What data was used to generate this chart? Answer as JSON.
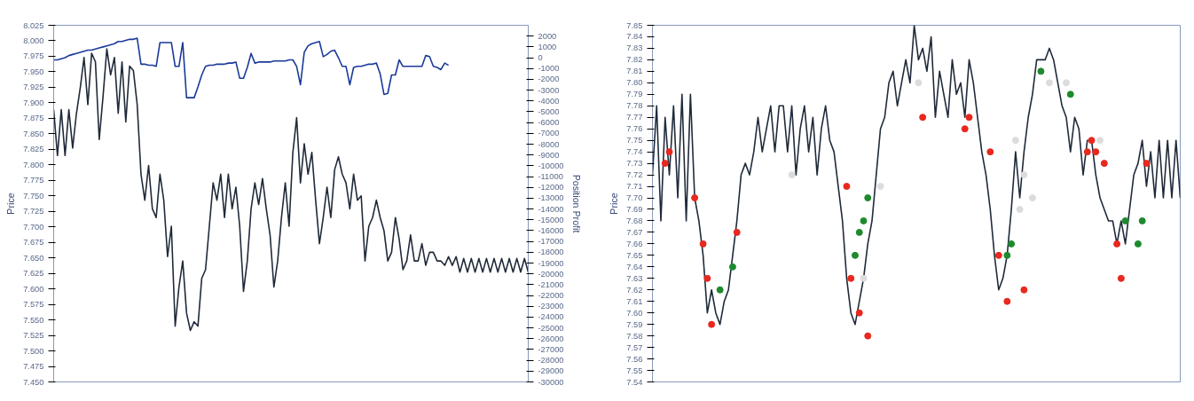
{
  "chart_data": [
    {
      "type": "line",
      "ylabel": "Price",
      "y2label": "Position Profit",
      "grid": false,
      "tick_labels": "y",
      "marker": "none",
      "line_style": "solid",
      "categories": [
        null,
        null,
        null,
        null,
        null,
        null,
        null,
        null,
        null,
        null,
        null,
        null,
        null,
        null,
        null,
        null,
        null,
        null,
        null,
        null,
        null,
        null,
        null,
        null,
        null,
        null,
        null,
        null,
        null,
        null,
        null,
        null,
        null,
        null,
        null,
        null,
        null,
        null,
        null,
        null,
        null,
        null,
        null,
        null,
        null,
        null,
        null,
        null,
        null,
        null,
        null,
        null,
        null,
        null,
        null,
        null,
        null,
        null,
        null,
        null,
        null,
        null,
        null,
        null,
        null,
        null,
        null,
        null,
        null,
        null,
        null,
        null,
        null,
        null,
        null,
        null,
        null,
        null,
        null,
        null,
        null,
        null,
        null,
        null,
        null,
        null,
        null,
        null,
        null,
        null,
        null,
        null,
        null,
        null,
        null,
        null,
        null,
        null,
        null,
        null,
        null,
        null,
        null,
        null,
        null,
        null,
        null,
        null,
        null,
        null,
        null,
        null,
        null,
        null,
        null,
        null,
        null,
        null,
        null,
        null,
        null,
        null,
        null,
        null,
        null,
        null
      ],
      "ylim": [
        7.45,
        8.025
      ],
      "y2lim": [
        -30000,
        3000
      ],
      "yticks": [
        {
          "value": 7.45,
          "label": "7.450"
        },
        7.475,
        {
          "value": 7.5,
          "label": "7.500"
        },
        7.525,
        {
          "value": 7.55,
          "label": "7.550"
        },
        7.575,
        {
          "value": 7.6,
          "label": "7.600"
        },
        7.625,
        {
          "value": 7.65,
          "label": "7.650"
        },
        7.675,
        {
          "value": 7.7,
          "label": "7.700"
        },
        7.725,
        {
          "value": 7.75,
          "label": "7.750"
        },
        7.775,
        {
          "value": 7.8,
          "label": "7.800"
        },
        7.825,
        {
          "value": 7.85,
          "label": "7.850"
        },
        7.875,
        {
          "value": 7.9,
          "label": "7.900"
        },
        7.925,
        {
          "value": 7.95,
          "label": "7.950"
        },
        7.975,
        {
          "value": 8.0,
          "label": "8.000"
        },
        8.025
      ],
      "y2ticks": [
        2000,
        1000,
        0,
        -1000,
        -2000,
        -3000,
        -4000,
        -5000,
        -6000,
        -7000,
        -8000,
        -9000,
        -10000,
        -11000,
        -12000,
        -13000,
        -14000,
        -15000,
        -16000,
        -17000,
        -18000,
        -19000,
        -20000,
        -21000,
        -22000,
        -23000,
        -24000,
        -25000,
        -26000,
        -27000,
        -28000,
        -29000,
        -30000
      ],
      "series": [
        {
          "color": "#1f2a3a",
          "values": [
            7.889,
            7.815,
            7.889,
            7.815,
            7.889,
            7.827,
            7.883,
            7.924,
            7.973,
            7.897,
            7.98,
            7.966,
            7.841,
            7.91,
            7.987,
            7.945,
            7.973,
            7.883,
            7.966,
            7.869,
            7.959,
            7.952,
            7.897,
            7.785,
            7.743,
            7.799,
            7.729,
            7.715,
            7.785,
            7.743,
            7.652,
            7.701,
            7.54,
            7.603,
            7.645,
            7.561,
            7.533,
            7.547,
            7.54,
            7.617,
            7.631,
            7.701,
            7.771,
            7.743,
            7.785,
            7.715,
            7.785,
            7.729,
            7.764,
            7.701,
            7.596,
            7.645,
            7.729,
            7.771,
            7.736,
            7.778,
            7.729,
            7.687,
            7.603,
            7.645,
            7.715,
            7.771,
            7.701,
            7.82,
            7.876,
            7.771,
            7.834,
            7.785,
            7.82,
            7.743,
            7.673,
            7.715,
            7.764,
            7.715,
            7.792,
            7.813,
            7.785,
            7.771,
            7.729,
            7.785,
            7.743,
            7.75,
            7.645,
            7.701,
            7.715,
            7.743,
            7.715,
            7.694,
            7.645,
            7.659,
            7.715,
            7.68,
            7.631,
            7.645,
            7.687,
            7.645,
            7.645,
            7.673,
            7.638,
            7.659,
            7.659,
            7.645,
            7.645,
            7.638,
            7.652,
            7.638,
            7.652,
            7.627,
            7.649,
            7.627,
            7.649,
            7.627,
            7.649,
            7.627,
            7.649,
            7.627,
            7.649,
            7.627,
            7.649,
            7.627,
            7.649,
            7.627,
            7.649,
            7.627,
            7.649,
            7.627
          ]
        },
        {
          "axis": "y2",
          "color": "#1a3a9a",
          "values": [
            -200,
            -200,
            -100,
            0,
            200,
            300,
            400,
            500,
            600,
            700,
            700,
            800,
            900,
            1000,
            1100,
            1200,
            1300,
            1500,
            1500,
            1600,
            1700,
            1700,
            1800,
            -600,
            -600,
            -700,
            -700,
            -800,
            1400,
            1400,
            1400,
            1400,
            -800,
            -800,
            1400,
            -3700,
            -3700,
            -3700,
            -2700,
            -1600,
            -800,
            -700,
            -700,
            -600,
            -600,
            -600,
            -500,
            -500,
            -400,
            -1900,
            -1900,
            -900,
            400,
            -500,
            -400,
            -400,
            -400,
            -400,
            -300,
            -300,
            -300,
            -300,
            -200,
            -200,
            -800,
            -2500,
            500,
            1100,
            1300,
            1400,
            1500,
            100,
            300,
            600,
            700,
            0,
            -800,
            -800,
            -2500,
            -900,
            -800,
            -800,
            -700,
            -600,
            -600,
            -500,
            -1500,
            -3400,
            -3300,
            -1600,
            -1600,
            -200,
            -800,
            -800,
            -800,
            -800,
            -800,
            -800,
            200,
            100,
            -800,
            -900,
            -1100,
            -500,
            -700,
            null,
            null,
            null,
            null,
            null,
            null,
            null,
            null,
            null,
            null,
            null,
            null,
            null,
            null,
            null,
            null,
            null,
            null,
            null,
            null,
            null
          ]
        }
      ]
    },
    {
      "type": "line",
      "ylabel": "Price",
      "grid": false,
      "tick_labels": "y",
      "marker": "none",
      "line_style": "solid",
      "categories": [
        null,
        null,
        null,
        null,
        null,
        null,
        null,
        null,
        null,
        null,
        null,
        null,
        null,
        null,
        null,
        null,
        null,
        null,
        null,
        null,
        null,
        null,
        null,
        null,
        null,
        null,
        null,
        null,
        null,
        null,
        null,
        null,
        null,
        null,
        null,
        null,
        null,
        null,
        null,
        null,
        null,
        null,
        null,
        null,
        null,
        null,
        null,
        null,
        null,
        null,
        null,
        null,
        null,
        null,
        null,
        null,
        null,
        null,
        null,
        null,
        null,
        null,
        null,
        null,
        null,
        null,
        null,
        null,
        null,
        null,
        null,
        null,
        null,
        null,
        null,
        null,
        null,
        null,
        null,
        null,
        null,
        null,
        null,
        null,
        null,
        null,
        null,
        null,
        null,
        null,
        null,
        null,
        null,
        null,
        null,
        null,
        null,
        null,
        null,
        null,
        null,
        null,
        null,
        null,
        null,
        null,
        null,
        null,
        null,
        null,
        null,
        null,
        null,
        null,
        null,
        null,
        null,
        null,
        null,
        null,
        null,
        null,
        null,
        null,
        null,
        null
      ],
      "ylim": [
        7.54,
        7.85
      ],
      "yticks": [
        7.54,
        7.55,
        7.56,
        7.57,
        7.58,
        7.59,
        {
          "value": 7.6,
          "label": "7.60"
        },
        7.61,
        7.62,
        7.63,
        7.64,
        7.65,
        7.66,
        7.67,
        7.68,
        7.69,
        {
          "value": 7.7,
          "label": "7.70"
        },
        7.71,
        7.72,
        7.73,
        7.74,
        7.75,
        7.76,
        7.77,
        7.78,
        7.79,
        {
          "value": 7.8,
          "label": "7.80"
        },
        7.81,
        7.82,
        7.83,
        7.84,
        7.85
      ],
      "series": [
        {
          "color": "#1f2a3a",
          "values": [
            7.72,
            7.78,
            7.68,
            7.77,
            7.72,
            7.78,
            7.7,
            7.79,
            7.68,
            7.79,
            7.7,
            7.68,
            7.65,
            7.6,
            7.62,
            7.6,
            7.59,
            7.61,
            7.62,
            7.65,
            7.68,
            7.72,
            7.73,
            7.72,
            7.74,
            7.77,
            7.74,
            7.76,
            7.78,
            7.74,
            7.78,
            7.78,
            7.74,
            7.78,
            7.72,
            7.76,
            7.78,
            7.74,
            7.77,
            7.72,
            7.76,
            7.78,
            7.75,
            7.74,
            7.71,
            7.68,
            7.63,
            7.6,
            7.59,
            7.61,
            7.63,
            7.66,
            7.68,
            7.72,
            7.76,
            7.77,
            7.8,
            7.81,
            7.78,
            7.8,
            7.82,
            7.8,
            7.85,
            7.82,
            7.83,
            7.81,
            7.84,
            7.77,
            7.81,
            7.79,
            7.77,
            7.82,
            7.79,
            7.8,
            7.77,
            7.82,
            7.8,
            7.77,
            7.74,
            7.72,
            7.69,
            7.65,
            7.62,
            7.63,
            7.65,
            7.69,
            7.74,
            7.7,
            7.74,
            7.77,
            7.79,
            7.82,
            7.82,
            7.82,
            7.83,
            7.82,
            7.8,
            7.78,
            7.77,
            7.74,
            7.77,
            7.76,
            7.72,
            7.75,
            7.75,
            7.72,
            7.7,
            7.69,
            7.68,
            7.68,
            7.66,
            7.68,
            7.66,
            7.69,
            7.72,
            7.73,
            7.75,
            7.71,
            7.74,
            7.7,
            7.75,
            7.7,
            7.75,
            7.7,
            7.75,
            7.7
          ]
        },
        {
          "type": "scatter",
          "marker": "circle",
          "color": "#e8281e",
          "values": [
            null,
            null,
            null,
            7.73,
            7.74,
            null,
            null,
            null,
            null,
            null,
            7.7,
            null,
            7.66,
            7.63,
            7.59,
            null,
            null,
            null,
            null,
            null,
            7.67,
            null,
            null,
            null,
            null,
            null,
            null,
            null,
            null,
            null,
            null,
            null,
            null,
            null,
            null,
            null,
            null,
            null,
            null,
            null,
            null,
            null,
            null,
            null,
            null,
            null,
            7.71,
            7.63,
            null,
            7.6,
            null,
            7.58,
            null,
            null,
            null,
            null,
            null,
            null,
            null,
            null,
            null,
            null,
            null,
            null,
            7.77,
            null,
            null,
            null,
            null,
            null,
            null,
            null,
            null,
            null,
            7.76,
            7.77,
            null,
            null,
            null,
            null,
            7.74,
            null,
            7.65,
            null,
            7.61,
            null,
            null,
            null,
            7.62,
            null,
            null,
            null,
            null,
            null,
            null,
            null,
            null,
            null,
            null,
            null,
            null,
            null,
            null,
            7.74,
            7.75,
            7.74,
            null,
            7.73,
            null,
            null,
            7.66,
            7.63,
            null,
            null,
            null,
            null,
            null,
            7.73,
            null,
            null,
            null,
            null,
            null,
            null,
            null,
            null
          ]
        },
        {
          "type": "scatter",
          "marker": "circle",
          "color": "#1e8a2e",
          "values": [
            null,
            null,
            null,
            null,
            null,
            null,
            null,
            null,
            null,
            null,
            null,
            null,
            null,
            null,
            null,
            null,
            7.62,
            null,
            null,
            7.64,
            null,
            null,
            null,
            null,
            null,
            null,
            null,
            null,
            null,
            null,
            null,
            null,
            null,
            null,
            null,
            null,
            null,
            null,
            null,
            null,
            null,
            null,
            null,
            null,
            null,
            null,
            null,
            null,
            7.65,
            7.67,
            7.68,
            7.7,
            null,
            null,
            null,
            null,
            null,
            null,
            null,
            null,
            null,
            null,
            null,
            null,
            null,
            null,
            null,
            null,
            null,
            null,
            null,
            null,
            null,
            null,
            null,
            null,
            null,
            null,
            null,
            null,
            null,
            null,
            null,
            null,
            7.65,
            7.66,
            null,
            null,
            null,
            null,
            null,
            null,
            7.81,
            null,
            null,
            null,
            null,
            null,
            null,
            7.79,
            null,
            null,
            null,
            null,
            null,
            null,
            null,
            null,
            null,
            null,
            null,
            null,
            7.68,
            null,
            null,
            7.66,
            7.68,
            null,
            null,
            null,
            null,
            null,
            null,
            null,
            null,
            null
          ]
        },
        {
          "type": "scatter",
          "marker": "circle",
          "color": "#dcdcdc",
          "values": [
            null,
            null,
            null,
            null,
            null,
            null,
            null,
            null,
            null,
            null,
            null,
            null,
            null,
            null,
            null,
            null,
            null,
            null,
            null,
            null,
            null,
            null,
            null,
            null,
            null,
            null,
            null,
            null,
            null,
            null,
            null,
            null,
            null,
            7.72,
            null,
            null,
            null,
            null,
            null,
            null,
            null,
            null,
            null,
            null,
            null,
            null,
            null,
            null,
            null,
            null,
            7.63,
            null,
            null,
            null,
            7.71,
            null,
            null,
            null,
            null,
            null,
            null,
            null,
            null,
            7.8,
            null,
            null,
            null,
            null,
            null,
            null,
            null,
            null,
            null,
            null,
            null,
            null,
            null,
            null,
            null,
            null,
            null,
            null,
            null,
            null,
            null,
            null,
            7.75,
            7.69,
            7.72,
            null,
            7.7,
            null,
            null,
            null,
            7.8,
            null,
            null,
            null,
            7.8,
            null,
            null,
            null,
            null,
            null,
            null,
            null,
            7.75,
            null,
            null,
            null,
            null,
            null,
            null,
            null,
            null,
            null,
            null,
            null,
            null,
            null,
            null,
            null,
            null,
            null,
            null,
            null
          ]
        }
      ]
    }
  ]
}
